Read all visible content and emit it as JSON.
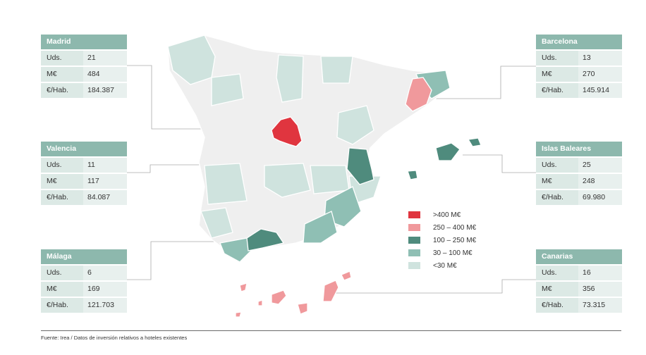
{
  "cards": {
    "madrid": {
      "title": "Madrid",
      "rows": [
        {
          "k": "Uds.",
          "v": "21"
        },
        {
          "k": "M€",
          "v": "484"
        },
        {
          "k": "€/Hab.",
          "v": "184.387"
        }
      ]
    },
    "valencia": {
      "title": "Valencia",
      "rows": [
        {
          "k": "Uds.",
          "v": "11"
        },
        {
          "k": "M€",
          "v": "117"
        },
        {
          "k": "€/Hab.",
          "v": "84.087"
        }
      ]
    },
    "malaga": {
      "title": "Málaga",
      "rows": [
        {
          "k": "Uds.",
          "v": "6"
        },
        {
          "k": "M€",
          "v": "169"
        },
        {
          "k": "€/Hab.",
          "v": "121.703"
        }
      ]
    },
    "barcelona": {
      "title": "Barcelona",
      "rows": [
        {
          "k": "Uds.",
          "v": "13"
        },
        {
          "k": "M€",
          "v": "270"
        },
        {
          "k": "€/Hab.",
          "v": "145.914"
        }
      ]
    },
    "baleares": {
      "title": "Islas Baleares",
      "rows": [
        {
          "k": "Uds.",
          "v": "25"
        },
        {
          "k": "M€",
          "v": "248"
        },
        {
          "k": "€/Hab.",
          "v": "69.980"
        }
      ]
    },
    "canarias": {
      "title": "Canarias",
      "rows": [
        {
          "k": "Uds.",
          "v": "16"
        },
        {
          "k": "M€",
          "v": "356"
        },
        {
          "k": "€/Hab.",
          "v": "73.315"
        }
      ]
    }
  },
  "legend": [
    {
      "label": ">400 M€",
      "color": "#e0353f"
    },
    {
      "label": "250 – 400 M€",
      "color": "#f0999c"
    },
    {
      "label": "100 – 250 M€",
      "color": "#4f8b7d"
    },
    {
      "label": "30 – 100 M€",
      "color": "#8fbfb4"
    },
    {
      "label": "<30 M€",
      "color": "#cfe3de"
    }
  ],
  "colors": {
    "base": "#efefef",
    "light_teal": "#cfe3de",
    "mid_teal": "#8fbfb4",
    "dark_teal": "#4f8b7d",
    "pink": "#f0999c",
    "red": "#e0353f",
    "header": "#8db8ad"
  },
  "source": "Fuente: Irea / Datos de inversión relativos a hoteles existentes"
}
